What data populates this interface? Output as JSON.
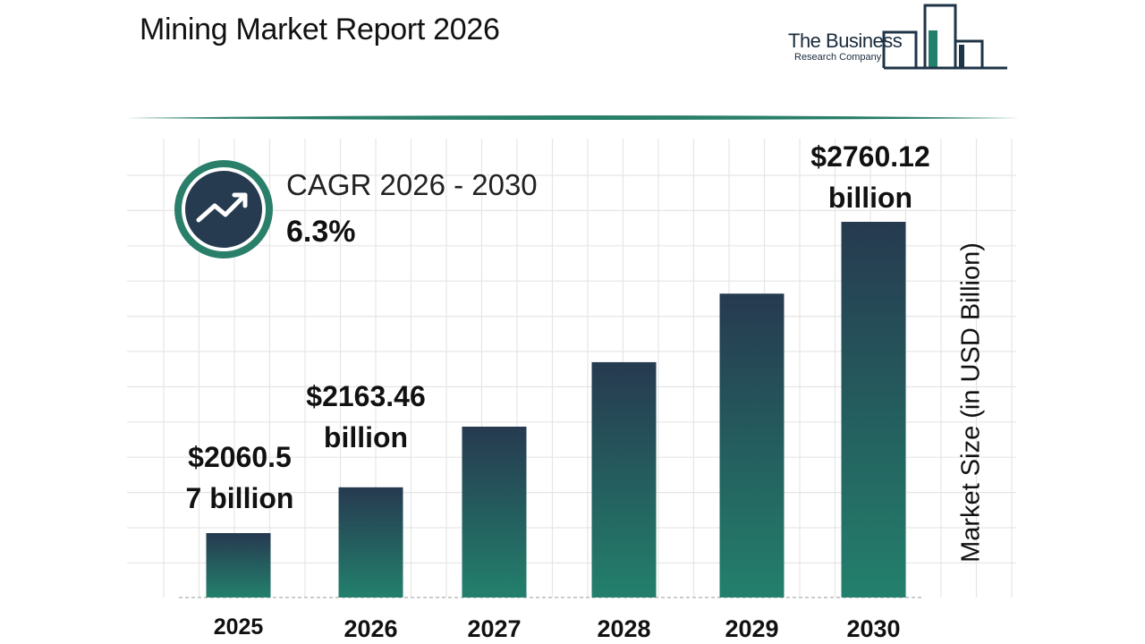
{
  "header": {
    "title": "Mining Market Report 2026"
  },
  "logo": {
    "line1": "The Business",
    "line2": "Research Company"
  },
  "cagr": {
    "label": "CAGR 2026 - 2030",
    "value": "6.3%",
    "icon": "trend-up-arrow-icon"
  },
  "colors": {
    "bar_top": "#263a50",
    "bar_bottom": "#23806c",
    "accent": "#2a7f6a",
    "badge_fill": "#263a50"
  },
  "chart_data": {
    "type": "bar",
    "categories": [
      "2025",
      "2026",
      "2027",
      "2028",
      "2029",
      "2030"
    ],
    "values": [
      2060.57,
      2163.46,
      2299.8,
      2444.7,
      2598.7,
      2760.12
    ],
    "ylabel": "Market Size (in USD Billion)",
    "xlabel": "",
    "grid": true,
    "data_labels": [
      {
        "category": "2025",
        "lines": [
          "$2060.5",
          "7 billion"
        ]
      },
      {
        "category": "2026",
        "lines": [
          "$2163.46",
          "billion"
        ]
      },
      {
        "category": "2030",
        "lines": [
          "$2760.12",
          "billion"
        ]
      }
    ]
  }
}
